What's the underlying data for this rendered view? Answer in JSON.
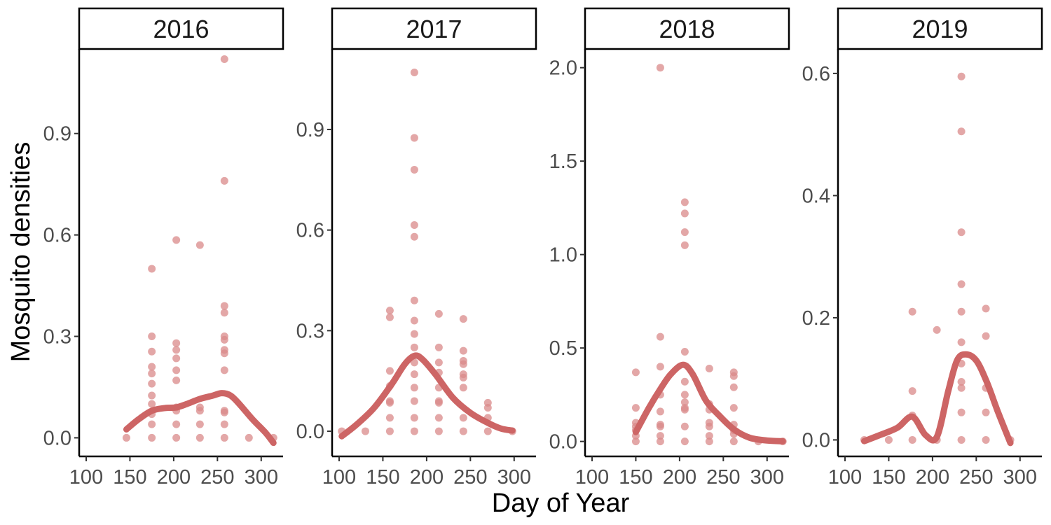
{
  "chart_data": {
    "type": "scatter",
    "xlabel": "Day of Year",
    "ylabel": "Mosquito densities",
    "colors": {
      "points": "#d98a8a",
      "smooth": "#cd6565"
    },
    "facets": [
      {
        "label": "2016",
        "xlim": [
          92,
          325
        ],
        "ylim": [
          -0.055,
          1.15
        ],
        "xticks": [
          100,
          150,
          200,
          250,
          300
        ],
        "yticks": [
          0.0,
          0.3,
          0.6,
          0.9
        ],
        "ytick_labels": [
          "0.0",
          "0.3",
          "0.6",
          "0.9"
        ],
        "points": [
          [
            146,
            0
          ],
          [
            175,
            0
          ],
          [
            175,
            0.04
          ],
          [
            175,
            0.07
          ],
          [
            175,
            0.1
          ],
          [
            175,
            0.125
          ],
          [
            175,
            0.16
          ],
          [
            175,
            0.19
          ],
          [
            175,
            0.21
          ],
          [
            175,
            0.255
          ],
          [
            175,
            0.3
          ],
          [
            175,
            0.5
          ],
          [
            203,
            0
          ],
          [
            203,
            0.04
          ],
          [
            203,
            0.08
          ],
          [
            203,
            0.09
          ],
          [
            203,
            0.17
          ],
          [
            203,
            0.2
          ],
          [
            203,
            0.235
          ],
          [
            203,
            0.26
          ],
          [
            203,
            0.28
          ],
          [
            203,
            0.585
          ],
          [
            230,
            0
          ],
          [
            230,
            0.04
          ],
          [
            230,
            0.08
          ],
          [
            230,
            0.09
          ],
          [
            230,
            0.57
          ],
          [
            258,
            0
          ],
          [
            258,
            0.04
          ],
          [
            258,
            0.075
          ],
          [
            258,
            0.08
          ],
          [
            258,
            0.2
          ],
          [
            258,
            0.25
          ],
          [
            258,
            0.26
          ],
          [
            258,
            0.29
          ],
          [
            258,
            0.3
          ],
          [
            258,
            0.37
          ],
          [
            258,
            0.39
          ],
          [
            258,
            0.76
          ],
          [
            258,
            1.12
          ],
          [
            286,
            0
          ],
          [
            314,
            0
          ]
        ],
        "smooth": [
          [
            146,
            0.025
          ],
          [
            160,
            0.055
          ],
          [
            175,
            0.08
          ],
          [
            190,
            0.088
          ],
          [
            203,
            0.09
          ],
          [
            215,
            0.1
          ],
          [
            230,
            0.115
          ],
          [
            245,
            0.125
          ],
          [
            255,
            0.132
          ],
          [
            265,
            0.125
          ],
          [
            275,
            0.1
          ],
          [
            290,
            0.055
          ],
          [
            305,
            0.015
          ],
          [
            314,
            -0.015
          ]
        ]
      },
      {
        "label": "2017",
        "xlim": [
          92,
          325
        ],
        "ylim": [
          -0.075,
          1.14
        ],
        "xticks": [
          100,
          150,
          200,
          250,
          300
        ],
        "yticks": [
          0.0,
          0.3,
          0.6,
          0.9
        ],
        "ytick_labels": [
          "0.0",
          "0.3",
          "0.6",
          "0.9"
        ],
        "points": [
          [
            103,
            0
          ],
          [
            130,
            0
          ],
          [
            158,
            0
          ],
          [
            158,
            0.04
          ],
          [
            158,
            0.085
          ],
          [
            158,
            0.09
          ],
          [
            158,
            0.135
          ],
          [
            158,
            0.18
          ],
          [
            158,
            0.34
          ],
          [
            158,
            0.36
          ],
          [
            186,
            0
          ],
          [
            186,
            0.04
          ],
          [
            186,
            0.09
          ],
          [
            186,
            0.13
          ],
          [
            186,
            0.17
          ],
          [
            186,
            0.205
          ],
          [
            186,
            0.25
          ],
          [
            186,
            0.29
          ],
          [
            186,
            0.33
          ],
          [
            186,
            0.39
          ],
          [
            186,
            0.58
          ],
          [
            186,
            0.615
          ],
          [
            186,
            0.78
          ],
          [
            186,
            0.875
          ],
          [
            186,
            1.07
          ],
          [
            214,
            0
          ],
          [
            214,
            0.04
          ],
          [
            214,
            0.085
          ],
          [
            214,
            0.09
          ],
          [
            214,
            0.13
          ],
          [
            214,
            0.175
          ],
          [
            214,
            0.205
          ],
          [
            214,
            0.25
          ],
          [
            214,
            0.35
          ],
          [
            242,
            0
          ],
          [
            242,
            0.04
          ],
          [
            242,
            0.13
          ],
          [
            242,
            0.16
          ],
          [
            242,
            0.17
          ],
          [
            242,
            0.2
          ],
          [
            242,
            0.21
          ],
          [
            242,
            0.24
          ],
          [
            242,
            0.335
          ],
          [
            270,
            0
          ],
          [
            270,
            0.04
          ],
          [
            270,
            0.07
          ],
          [
            270,
            0.085
          ],
          [
            298,
            0
          ]
        ],
        "smooth": [
          [
            103,
            -0.015
          ],
          [
            120,
            0.02
          ],
          [
            140,
            0.07
          ],
          [
            160,
            0.14
          ],
          [
            175,
            0.2
          ],
          [
            186,
            0.225
          ],
          [
            195,
            0.215
          ],
          [
            210,
            0.17
          ],
          [
            230,
            0.1
          ],
          [
            250,
            0.055
          ],
          [
            270,
            0.025
          ],
          [
            285,
            0.008
          ],
          [
            298,
            0.002
          ]
        ]
      },
      {
        "label": "2018",
        "xlim": [
          92,
          325
        ],
        "ylim": [
          -0.08,
          2.1
        ],
        "xticks": [
          100,
          150,
          200,
          250,
          300
        ],
        "yticks": [
          0.0,
          0.5,
          1.0,
          1.5,
          2.0
        ],
        "ytick_labels": [
          "0.0",
          "0.5",
          "1.0",
          "1.5",
          "2.0"
        ],
        "points": [
          [
            150,
            0
          ],
          [
            150,
            0.03
          ],
          [
            150,
            0.06
          ],
          [
            150,
            0.08
          ],
          [
            150,
            0.1
          ],
          [
            150,
            0.18
          ],
          [
            150,
            0.37
          ],
          [
            178,
            0
          ],
          [
            178,
            0.03
          ],
          [
            178,
            0.08
          ],
          [
            178,
            0.09
          ],
          [
            178,
            0.16
          ],
          [
            178,
            0.25
          ],
          [
            178,
            0.4
          ],
          [
            178,
            0.56
          ],
          [
            178,
            2.0
          ],
          [
            206,
            0
          ],
          [
            206,
            0.08
          ],
          [
            206,
            0.17
          ],
          [
            206,
            0.18
          ],
          [
            206,
            0.21
          ],
          [
            206,
            0.25
          ],
          [
            206,
            0.32
          ],
          [
            206,
            0.48
          ],
          [
            206,
            1.05
          ],
          [
            206,
            1.12
          ],
          [
            206,
            1.22
          ],
          [
            206,
            1.28
          ],
          [
            234,
            0
          ],
          [
            234,
            0.03
          ],
          [
            234,
            0.08
          ],
          [
            234,
            0.1
          ],
          [
            234,
            0.17
          ],
          [
            234,
            0.2
          ],
          [
            234,
            0.39
          ],
          [
            262,
            0
          ],
          [
            262,
            0.04
          ],
          [
            262,
            0.06
          ],
          [
            262,
            0.09
          ],
          [
            262,
            0.18
          ],
          [
            262,
            0.29
          ],
          [
            262,
            0.35
          ],
          [
            262,
            0.37
          ],
          [
            290,
            0
          ],
          [
            318,
            0
          ]
        ],
        "smooth": [
          [
            150,
            0.05
          ],
          [
            165,
            0.18
          ],
          [
            178,
            0.28
          ],
          [
            190,
            0.36
          ],
          [
            204,
            0.41
          ],
          [
            215,
            0.36
          ],
          [
            230,
            0.22
          ],
          [
            245,
            0.14
          ],
          [
            262,
            0.065
          ],
          [
            280,
            0.02
          ],
          [
            300,
            0.005
          ],
          [
            318,
            0.001
          ]
        ]
      },
      {
        "label": "2019",
        "xlim": [
          92,
          325
        ],
        "ylim": [
          -0.027,
          0.64
        ],
        "xticks": [
          100,
          150,
          200,
          250,
          300
        ],
        "yticks": [
          0.0,
          0.2,
          0.4,
          0.6
        ],
        "ytick_labels": [
          "0.0",
          "0.2",
          "0.4",
          "0.6"
        ],
        "points": [
          [
            122,
            0
          ],
          [
            150,
            0
          ],
          [
            177,
            0
          ],
          [
            177,
            0.04
          ],
          [
            177,
            0.08
          ],
          [
            177,
            0.21
          ],
          [
            205,
            0
          ],
          [
            205,
            0.18
          ],
          [
            233,
            0
          ],
          [
            233,
            0.045
          ],
          [
            233,
            0.085
          ],
          [
            233,
            0.095
          ],
          [
            233,
            0.125
          ],
          [
            233,
            0.16
          ],
          [
            233,
            0.21
          ],
          [
            233,
            0.255
          ],
          [
            233,
            0.34
          ],
          [
            233,
            0.505
          ],
          [
            233,
            0.595
          ],
          [
            261,
            0
          ],
          [
            261,
            0.045
          ],
          [
            261,
            0.085
          ],
          [
            261,
            0.17
          ],
          [
            261,
            0.215
          ],
          [
            289,
            0
          ]
        ],
        "smooth": [
          [
            122,
            -0.002
          ],
          [
            140,
            0.008
          ],
          [
            160,
            0.02
          ],
          [
            177,
            0.038
          ],
          [
            192,
            0.008
          ],
          [
            205,
            0.005
          ],
          [
            218,
            0.08
          ],
          [
            228,
            0.13
          ],
          [
            238,
            0.14
          ],
          [
            250,
            0.13
          ],
          [
            262,
            0.095
          ],
          [
            275,
            0.045
          ],
          [
            289,
            -0.005
          ]
        ]
      }
    ]
  }
}
